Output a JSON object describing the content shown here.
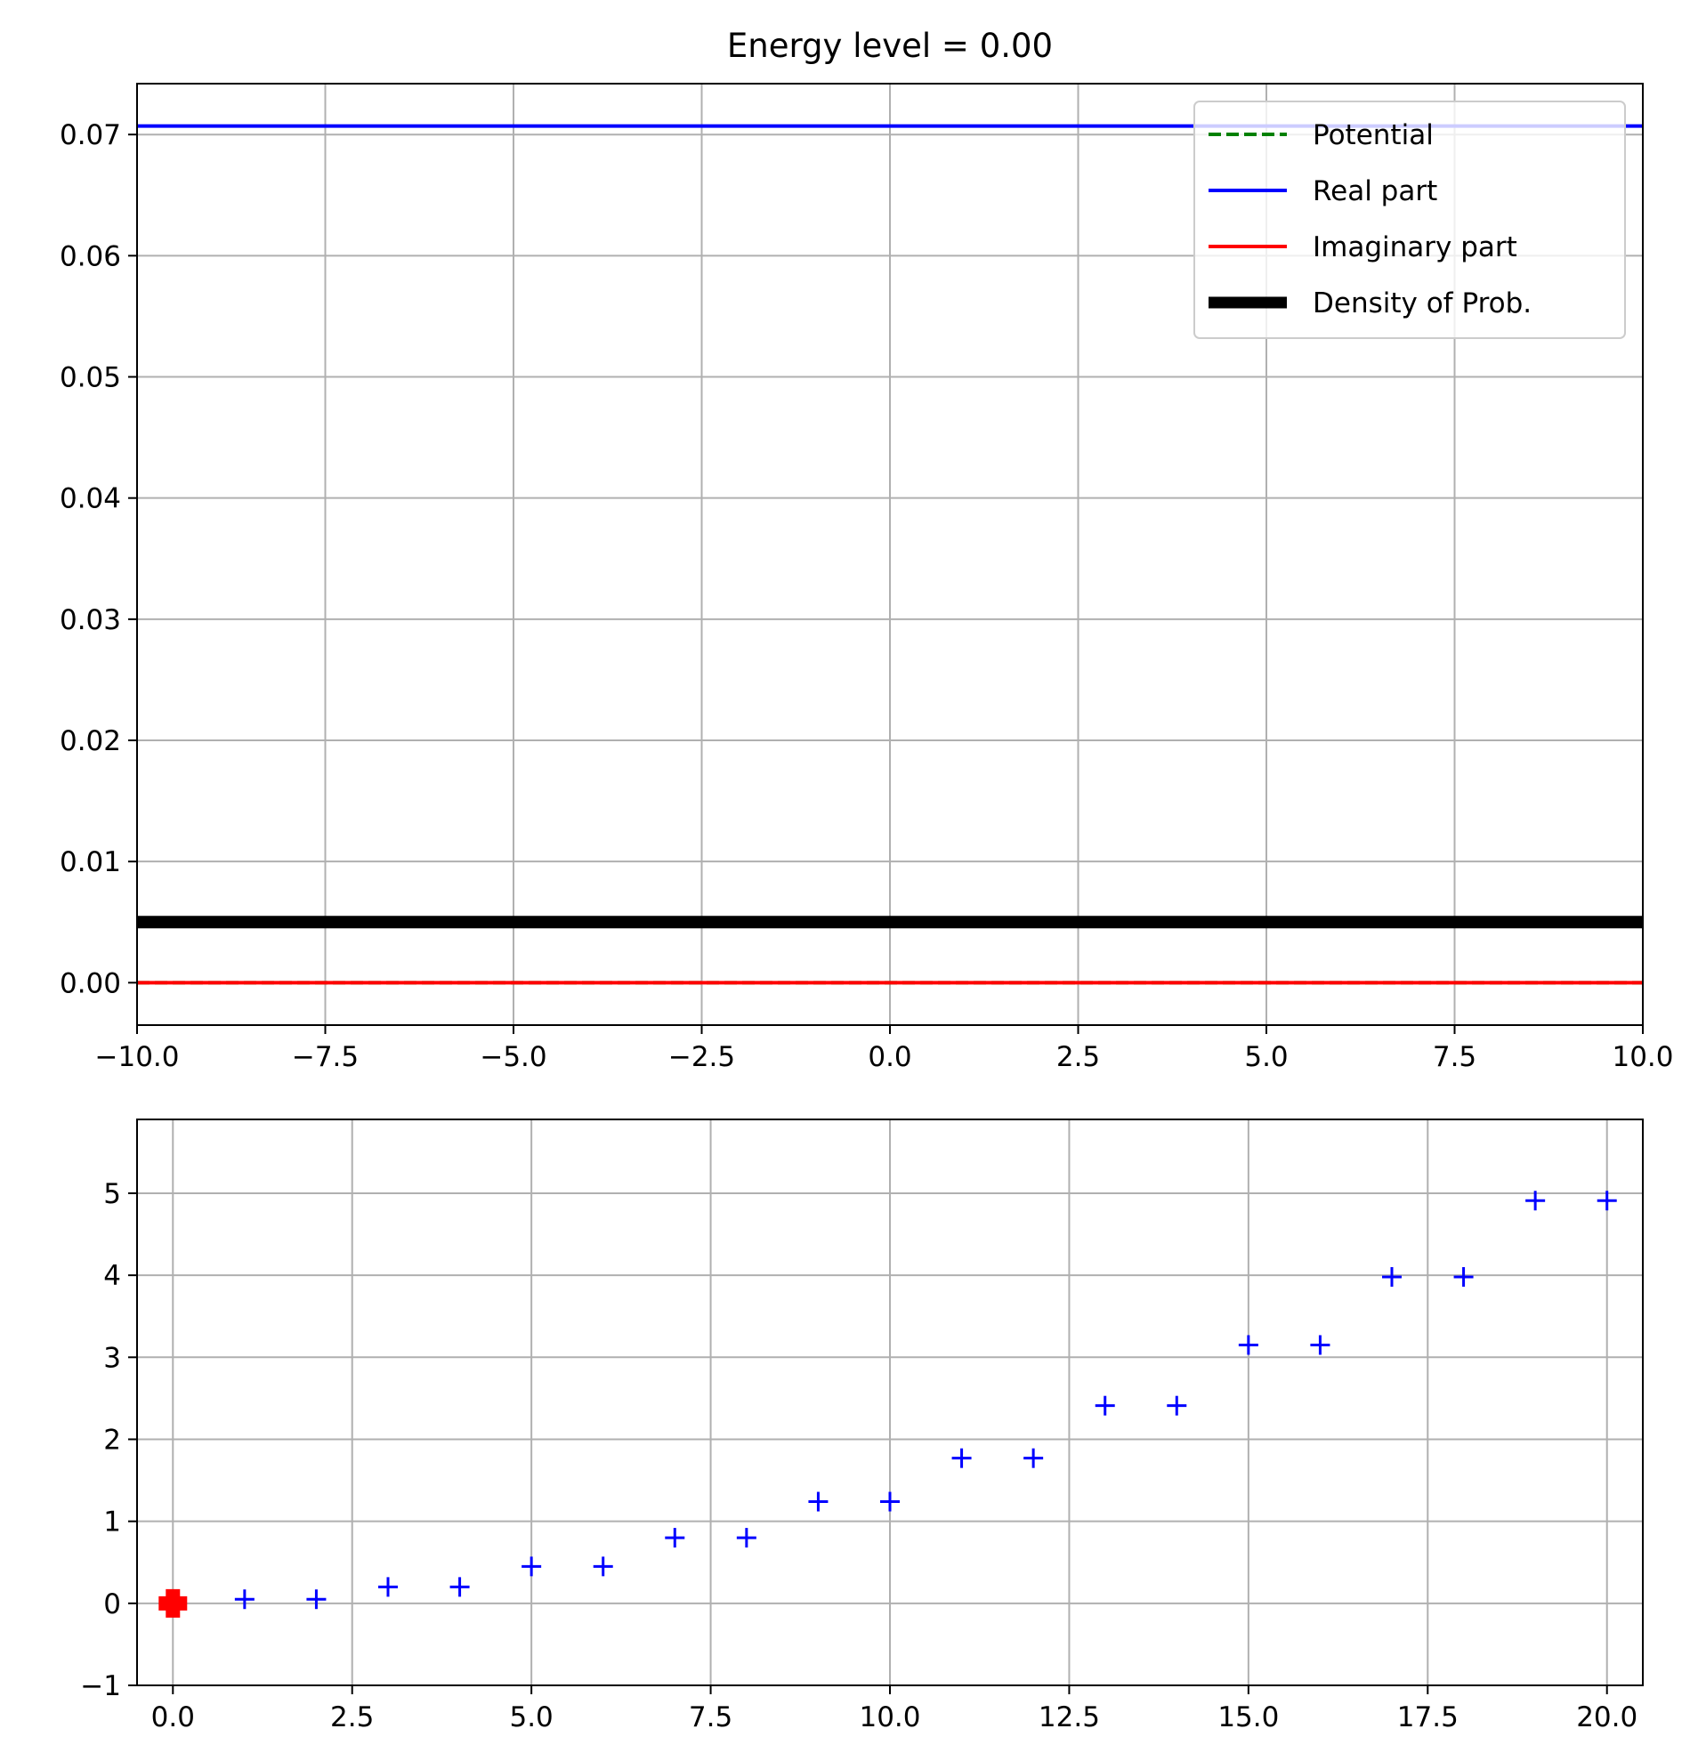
{
  "chart_data": [
    {
      "type": "line",
      "title": "Energy level = 0.00",
      "xlim": [
        -10,
        10
      ],
      "ylim": [
        -0.0035,
        0.0742
      ],
      "xticks": [
        -10,
        -7.5,
        -5,
        -2.5,
        0,
        2.5,
        5,
        7.5,
        10
      ],
      "xtick_labels": [
        "−10.0",
        "−7.5",
        "−5.0",
        "−2.5",
        "0.0",
        "2.5",
        "5.0",
        "7.5",
        "10.0"
      ],
      "yticks": [
        0,
        0.01,
        0.02,
        0.03,
        0.04,
        0.05,
        0.06,
        0.07
      ],
      "ytick_labels": [
        "0.00",
        "0.01",
        "0.02",
        "0.03",
        "0.04",
        "0.05",
        "0.06",
        "0.07"
      ],
      "grid": true,
      "legend_position": "top-right",
      "series": [
        {
          "name": "Potential",
          "color": "#008000",
          "style": "dashed",
          "x": [
            -10,
            10
          ],
          "y": [
            0,
            0
          ]
        },
        {
          "name": "Real part",
          "color": "#0000ff",
          "style": "solid",
          "x": [
            -10,
            10
          ],
          "y": [
            0.0707,
            0.0707
          ]
        },
        {
          "name": "Imaginary part",
          "color": "#ff0000",
          "style": "solid",
          "x": [
            -10,
            10
          ],
          "y": [
            0,
            0
          ]
        },
        {
          "name": "Density of Prob.",
          "color": "#000000",
          "style": "thick",
          "x": [
            -10,
            10
          ],
          "y": [
            0.005,
            0.005
          ]
        }
      ]
    },
    {
      "type": "scatter",
      "title": "",
      "xlim": [
        -0.5,
        20.5
      ],
      "ylim": [
        -1,
        5.9
      ],
      "xticks": [
        0,
        2.5,
        5,
        7.5,
        10,
        12.5,
        15,
        17.5,
        20
      ],
      "xtick_labels": [
        "0.0",
        "2.5",
        "5.0",
        "7.5",
        "10.0",
        "12.5",
        "15.0",
        "17.5",
        "20.0"
      ],
      "yticks": [
        -1,
        0,
        1,
        2,
        3,
        4,
        5
      ],
      "ytick_labels": [
        "−1",
        "0",
        "1",
        "2",
        "3",
        "4",
        "5"
      ],
      "grid": true,
      "series": [
        {
          "color": "#0000ff",
          "marker": "plus",
          "x": [
            1,
            2,
            3,
            4,
            5,
            6,
            7,
            8,
            9,
            10,
            11,
            12,
            13,
            14,
            15,
            16,
            17,
            18,
            19,
            20
          ],
          "y": [
            0.05,
            0.05,
            0.2,
            0.2,
            0.45,
            0.45,
            0.8,
            0.8,
            1.24,
            1.24,
            1.77,
            1.77,
            2.41,
            2.41,
            3.15,
            3.15,
            3.98,
            3.98,
            4.91,
            4.91
          ]
        },
        {
          "color": "#ff0000",
          "marker": "plus-bold",
          "x": [
            0
          ],
          "y": [
            0
          ]
        }
      ]
    }
  ]
}
